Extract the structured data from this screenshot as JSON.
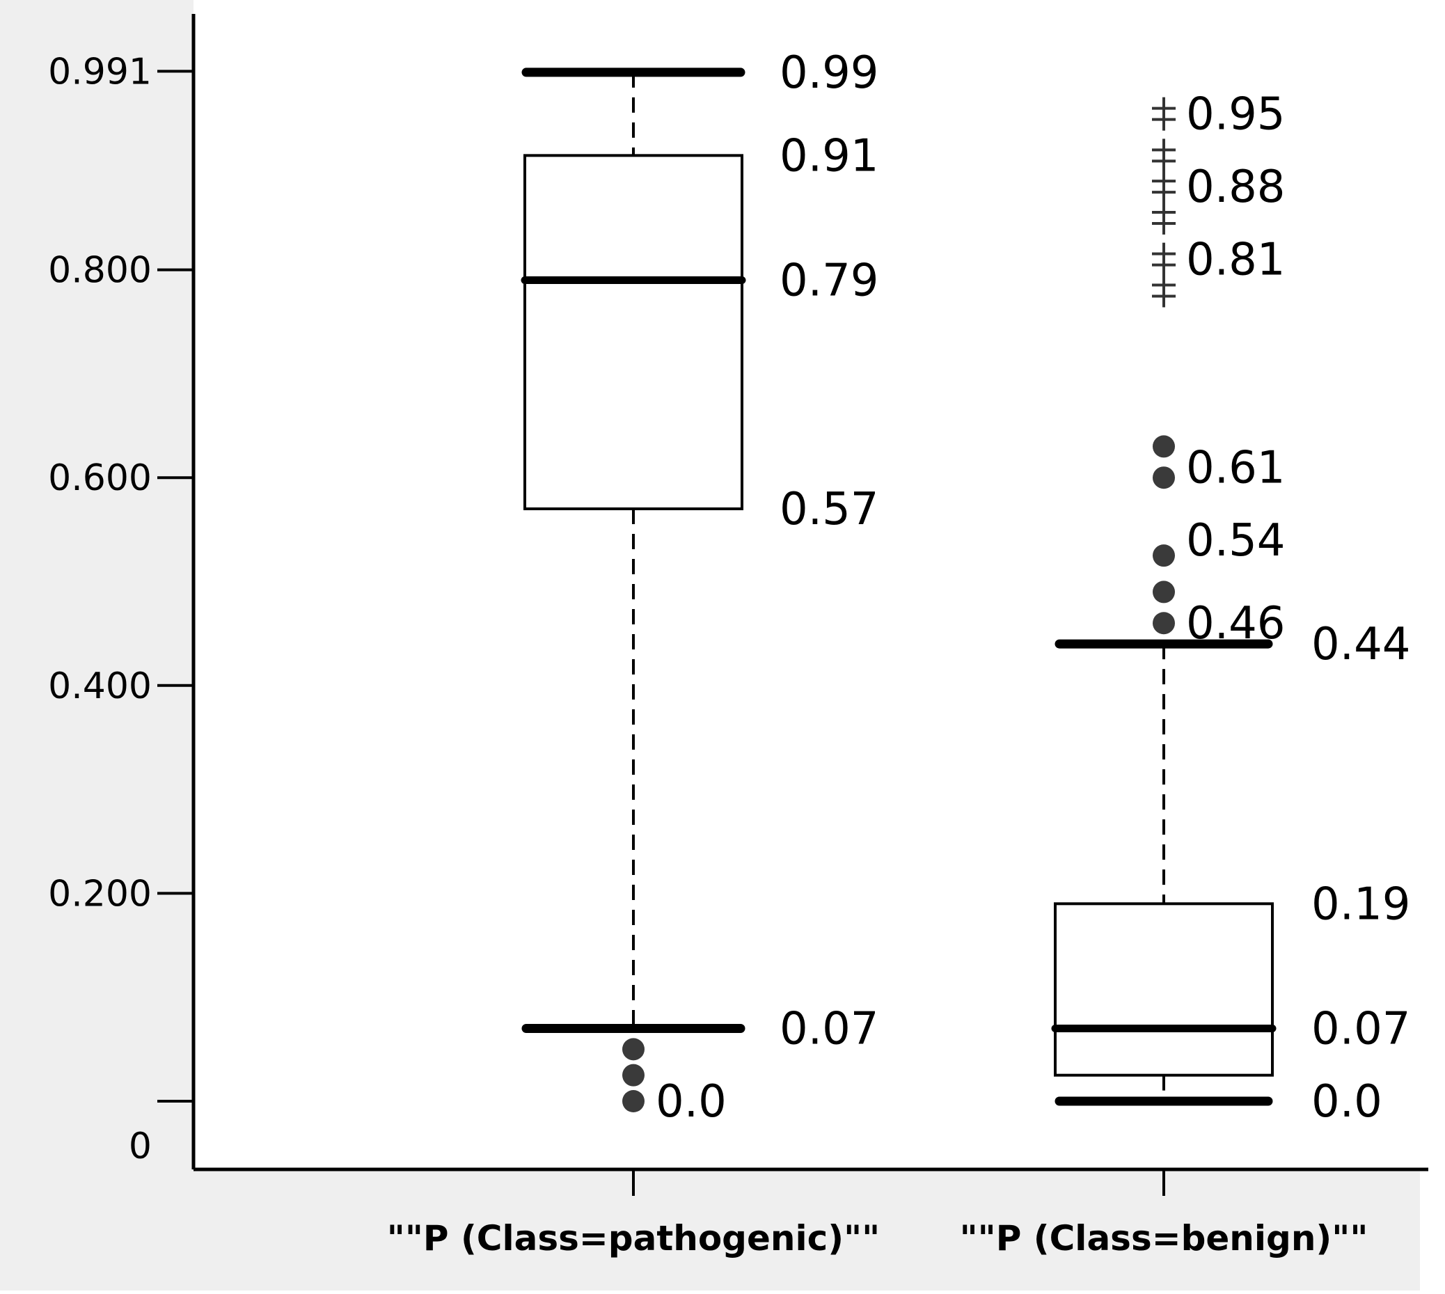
{
  "chart_data": {
    "type": "box",
    "title": "",
    "xlabel": "",
    "ylabel": "",
    "ylim": [
      -0.08,
      1.04
    ],
    "y_ticks": [
      {
        "value": 0.0,
        "label": "0"
      },
      {
        "value": 0.2,
        "label": "0.200"
      },
      {
        "value": 0.4,
        "label": "0.400"
      },
      {
        "value": 0.6,
        "label": "0.600"
      },
      {
        "value": 0.8,
        "label": "0.800"
      },
      {
        "value": 0.991,
        "label": "0.991"
      }
    ],
    "categories": [
      "\"\"P (Class=pathogenic)\"\"",
      "\"\"P (Class=benign)\"\""
    ],
    "series": [
      {
        "whisker_low": 0.07,
        "q1": 0.57,
        "median": 0.79,
        "q3": 0.91,
        "whisker_high": 0.99,
        "outliers": [
          0.05,
          0.025,
          0.0
        ],
        "extremes": [],
        "annotations": [
          {
            "value": 0.99,
            "label": "0.99"
          },
          {
            "value": 0.91,
            "label": "0.91"
          },
          {
            "value": 0.79,
            "label": "0.79"
          },
          {
            "value": 0.57,
            "label": "0.57"
          },
          {
            "value": 0.07,
            "label": "0.07"
          },
          {
            "value": 0.0,
            "label": "0.0"
          }
        ]
      },
      {
        "whisker_low": 0.0,
        "q1": 0.025,
        "median": 0.07,
        "q3": 0.19,
        "whisker_high": 0.44,
        "outliers": [
          0.63,
          0.6,
          0.525,
          0.49,
          0.46
        ],
        "extremes": [
          0.95,
          0.91,
          0.88,
          0.85,
          0.81,
          0.78
        ],
        "annotations": [
          {
            "value": 0.95,
            "label": "0.95"
          },
          {
            "value": 0.88,
            "label": "0.88"
          },
          {
            "value": 0.81,
            "label": "0.81"
          },
          {
            "value": 0.61,
            "label": "0.61"
          },
          {
            "value": 0.54,
            "label": "0.54"
          },
          {
            "value": 0.46,
            "label": "0.46"
          },
          {
            "value": 0.44,
            "label": "0.44"
          },
          {
            "value": 0.19,
            "label": "0.19"
          },
          {
            "value": 0.07,
            "label": "0.07"
          },
          {
            "value": 0.0,
            "label": "0.0"
          }
        ]
      }
    ]
  }
}
